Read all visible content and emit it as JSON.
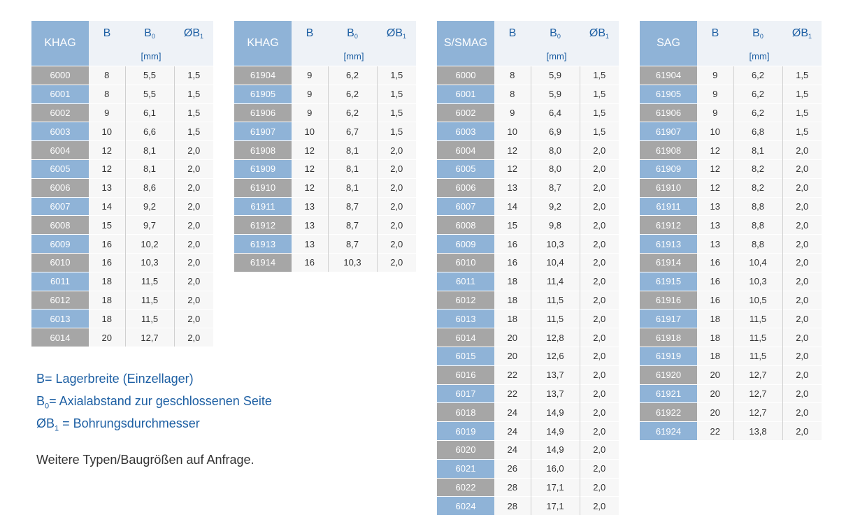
{
  "columns": {
    "b": "B",
    "b0_main": "B",
    "b0_sub": "0",
    "ob1_main": "ØB",
    "ob1_sub": "1",
    "unit": "[mm]"
  },
  "tables": [
    {
      "name": "KHAG",
      "rows": [
        [
          "6000",
          "8",
          "5,5",
          "1,5"
        ],
        [
          "6001",
          "8",
          "5,5",
          "1,5"
        ],
        [
          "6002",
          "9",
          "6,1",
          "1,5"
        ],
        [
          "6003",
          "10",
          "6,6",
          "1,5"
        ],
        [
          "6004",
          "12",
          "8,1",
          "2,0"
        ],
        [
          "6005",
          "12",
          "8,1",
          "2,0"
        ],
        [
          "6006",
          "13",
          "8,6",
          "2,0"
        ],
        [
          "6007",
          "14",
          "9,2",
          "2,0"
        ],
        [
          "6008",
          "15",
          "9,7",
          "2,0"
        ],
        [
          "6009",
          "16",
          "10,2",
          "2,0"
        ],
        [
          "6010",
          "16",
          "10,3",
          "2,0"
        ],
        [
          "6011",
          "18",
          "11,5",
          "2,0"
        ],
        [
          "6012",
          "18",
          "11,5",
          "2,0"
        ],
        [
          "6013",
          "18",
          "11,5",
          "2,0"
        ],
        [
          "6014",
          "20",
          "12,7",
          "2,0"
        ]
      ]
    },
    {
      "name": "KHAG",
      "rows": [
        [
          "61904",
          "9",
          "6,2",
          "1,5"
        ],
        [
          "61905",
          "9",
          "6,2",
          "1,5"
        ],
        [
          "61906",
          "9",
          "6,2",
          "1,5"
        ],
        [
          "61907",
          "10",
          "6,7",
          "1,5"
        ],
        [
          "61908",
          "12",
          "8,1",
          "2,0"
        ],
        [
          "61909",
          "12",
          "8,1",
          "2,0"
        ],
        [
          "61910",
          "12",
          "8,1",
          "2,0"
        ],
        [
          "61911",
          "13",
          "8,7",
          "2,0"
        ],
        [
          "61912",
          "13",
          "8,7",
          "2,0"
        ],
        [
          "61913",
          "13",
          "8,7",
          "2,0"
        ],
        [
          "61914",
          "16",
          "10,3",
          "2,0"
        ]
      ]
    },
    {
      "name": "S/SMAG",
      "rows": [
        [
          "6000",
          "8",
          "5,9",
          "1,5"
        ],
        [
          "6001",
          "8",
          "5,9",
          "1,5"
        ],
        [
          "6002",
          "9",
          "6,4",
          "1,5"
        ],
        [
          "6003",
          "10",
          "6,9",
          "1,5"
        ],
        [
          "6004",
          "12",
          "8,0",
          "2,0"
        ],
        [
          "6005",
          "12",
          "8,0",
          "2,0"
        ],
        [
          "6006",
          "13",
          "8,7",
          "2,0"
        ],
        [
          "6007",
          "14",
          "9,2",
          "2,0"
        ],
        [
          "6008",
          "15",
          "9,8",
          "2,0"
        ],
        [
          "6009",
          "16",
          "10,3",
          "2,0"
        ],
        [
          "6010",
          "16",
          "10,4",
          "2,0"
        ],
        [
          "6011",
          "18",
          "11,4",
          "2,0"
        ],
        [
          "6012",
          "18",
          "11,5",
          "2,0"
        ],
        [
          "6013",
          "18",
          "11,5",
          "2,0"
        ],
        [
          "6014",
          "20",
          "12,8",
          "2,0"
        ],
        [
          "6015",
          "20",
          "12,6",
          "2,0"
        ],
        [
          "6016",
          "22",
          "13,7",
          "2,0"
        ],
        [
          "6017",
          "22",
          "13,7",
          "2,0"
        ],
        [
          "6018",
          "24",
          "14,9",
          "2,0"
        ],
        [
          "6019",
          "24",
          "14,9",
          "2,0"
        ],
        [
          "6020",
          "24",
          "14,9",
          "2,0"
        ],
        [
          "6021",
          "26",
          "16,0",
          "2,0"
        ],
        [
          "6022",
          "28",
          "17,1",
          "2,0"
        ],
        [
          "6024",
          "28",
          "17,1",
          "2,0"
        ]
      ]
    },
    {
      "name": "SAG",
      "rows": [
        [
          "61904",
          "9",
          "6,2",
          "1,5"
        ],
        [
          "61905",
          "9",
          "6,2",
          "1,5"
        ],
        [
          "61906",
          "9",
          "6,2",
          "1,5"
        ],
        [
          "61907",
          "10",
          "6,8",
          "1,5"
        ],
        [
          "61908",
          "12",
          "8,1",
          "2,0"
        ],
        [
          "61909",
          "12",
          "8,2",
          "2,0"
        ],
        [
          "61910",
          "12",
          "8,2",
          "2,0"
        ],
        [
          "61911",
          "13",
          "8,8",
          "2,0"
        ],
        [
          "61912",
          "13",
          "8,8",
          "2,0"
        ],
        [
          "61913",
          "13",
          "8,8",
          "2,0"
        ],
        [
          "61914",
          "16",
          "10,4",
          "2,0"
        ],
        [
          "61915",
          "16",
          "10,3",
          "2,0"
        ],
        [
          "61916",
          "16",
          "10,5",
          "2,0"
        ],
        [
          "61917",
          "18",
          "11,5",
          "2,0"
        ],
        [
          "61918",
          "18",
          "11,5",
          "2,0"
        ],
        [
          "61919",
          "18",
          "11,5",
          "2,0"
        ],
        [
          "61920",
          "20",
          "12,7",
          "2,0"
        ],
        [
          "61921",
          "20",
          "12,7",
          "2,0"
        ],
        [
          "61922",
          "20",
          "12,7",
          "2,0"
        ],
        [
          "61924",
          "22",
          "13,8",
          "2,0"
        ]
      ]
    }
  ],
  "legend": {
    "b": "B= Lagerbreite (Einzellager)",
    "b0_main": "B",
    "b0_sub": "0",
    "b0_text": "= Axialabstand zur geschlossenen Seite",
    "ob1_main": "ØB",
    "ob1_sub": "1",
    "ob1_text": " = Bohrungsdurchmesser"
  },
  "note": "Weitere Typen/Baugrößen auf Anfrage.",
  "colors": {
    "header_blue": "#8fb3d7",
    "type_gray": "#a6a6a6",
    "text_blue": "#1d5fa3"
  }
}
